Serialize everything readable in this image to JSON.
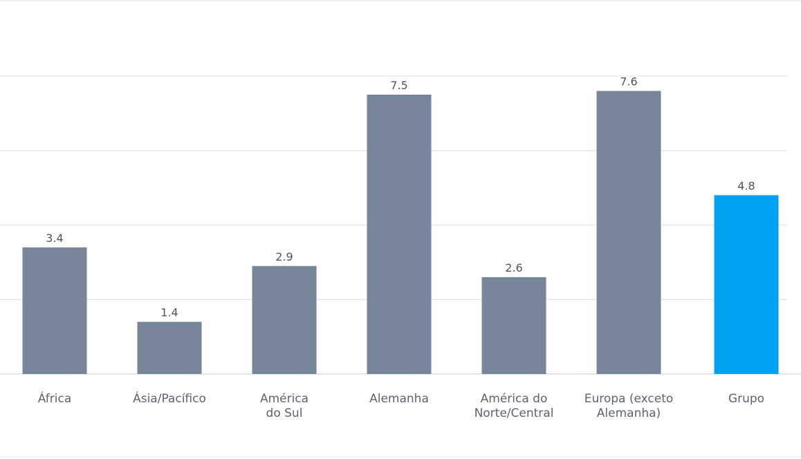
{
  "chart_data": {
    "type": "bar",
    "categories": [
      "África",
      "Ásia/Pacífico",
      "América\ndo Sul",
      "Alemanha",
      "América do\nNorte/Central",
      "Europa (exceto\nAlemanha)",
      "Grupo"
    ],
    "values": [
      3.4,
      1.4,
      2.9,
      7.5,
      2.6,
      7.6,
      4.8
    ],
    "value_labels": [
      "3.4",
      "1.4",
      "2.9",
      "7.5",
      "2.6",
      "7.6",
      "4.8"
    ],
    "ylim": [
      0,
      8
    ],
    "grid": true,
    "grid_step": 2,
    "colors": {
      "default_bar": "#788699",
      "highlight_bar": "#00a1f1",
      "grid": "#e3e7ec",
      "axis": "#d7dbe1",
      "text": "#5b6470"
    },
    "highlight_index": 6
  }
}
